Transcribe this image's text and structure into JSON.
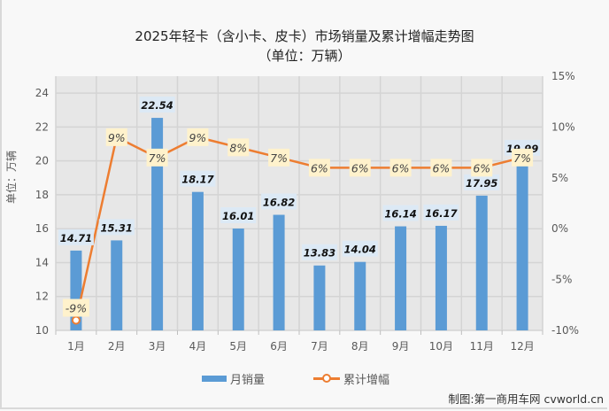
{
  "title": {
    "line1": "2025年轻卡（含小卡、皮卡）市场销量及累计增幅走势图",
    "line2": "（单位：万辆）"
  },
  "y_axis_label": "单位：万辆",
  "legend": {
    "bar": "月销量",
    "line": "累计增幅"
  },
  "credit": "制图:第一商用车网 cvworld.cn",
  "colors": {
    "bar": "#5b9bd5",
    "line": "#ed7d31",
    "bar_label_bg": "#dce9f5",
    "line_label_bg": "#fff2cc",
    "plot_bg": "#e7e7e7",
    "grid": "#d4d4d4"
  },
  "chart_data": {
    "type": "bar+line",
    "title": "2025年轻卡（含小卡、皮卡）市场销量及累计增幅走势图（单位：万辆）",
    "categories": [
      "1月",
      "2月",
      "3月",
      "4月",
      "5月",
      "6月",
      "7月",
      "8月",
      "9月",
      "10月",
      "11月",
      "12月"
    ],
    "series": [
      {
        "name": "月销量",
        "type": "bar",
        "axis": "left",
        "values": [
          14.71,
          15.31,
          22.54,
          18.17,
          16.01,
          16.82,
          13.83,
          14.04,
          16.14,
          16.17,
          17.95,
          19.99
        ],
        "labels": [
          "14.71",
          "15.31",
          "22.54",
          "18.17",
          "16.01",
          "16.82",
          "13.83",
          "14.04",
          "16.14",
          "16.17",
          "17.95",
          "19.99"
        ]
      },
      {
        "name": "累计增幅",
        "type": "line",
        "axis": "right",
        "values": [
          -9,
          9,
          7,
          9,
          8,
          7,
          6,
          6,
          6,
          6,
          6,
          7
        ],
        "labels": [
          "-9%",
          "9%",
          "7%",
          "9%",
          "8%",
          "7%",
          "6%",
          "6%",
          "6%",
          "6%",
          "6%",
          "7%"
        ]
      }
    ],
    "left_axis": {
      "ticks": [
        "10",
        "12",
        "14",
        "16",
        "18",
        "20",
        "22",
        "24"
      ],
      "min": 10,
      "max": 25,
      "label": "单位：万辆"
    },
    "right_axis": {
      "ticks": [
        "-10%",
        "-5%",
        "0%",
        "5%",
        "10%",
        "15%"
      ],
      "min": -10,
      "max": 15
    },
    "xlabel": "",
    "grid": true,
    "legend_position": "bottom"
  }
}
